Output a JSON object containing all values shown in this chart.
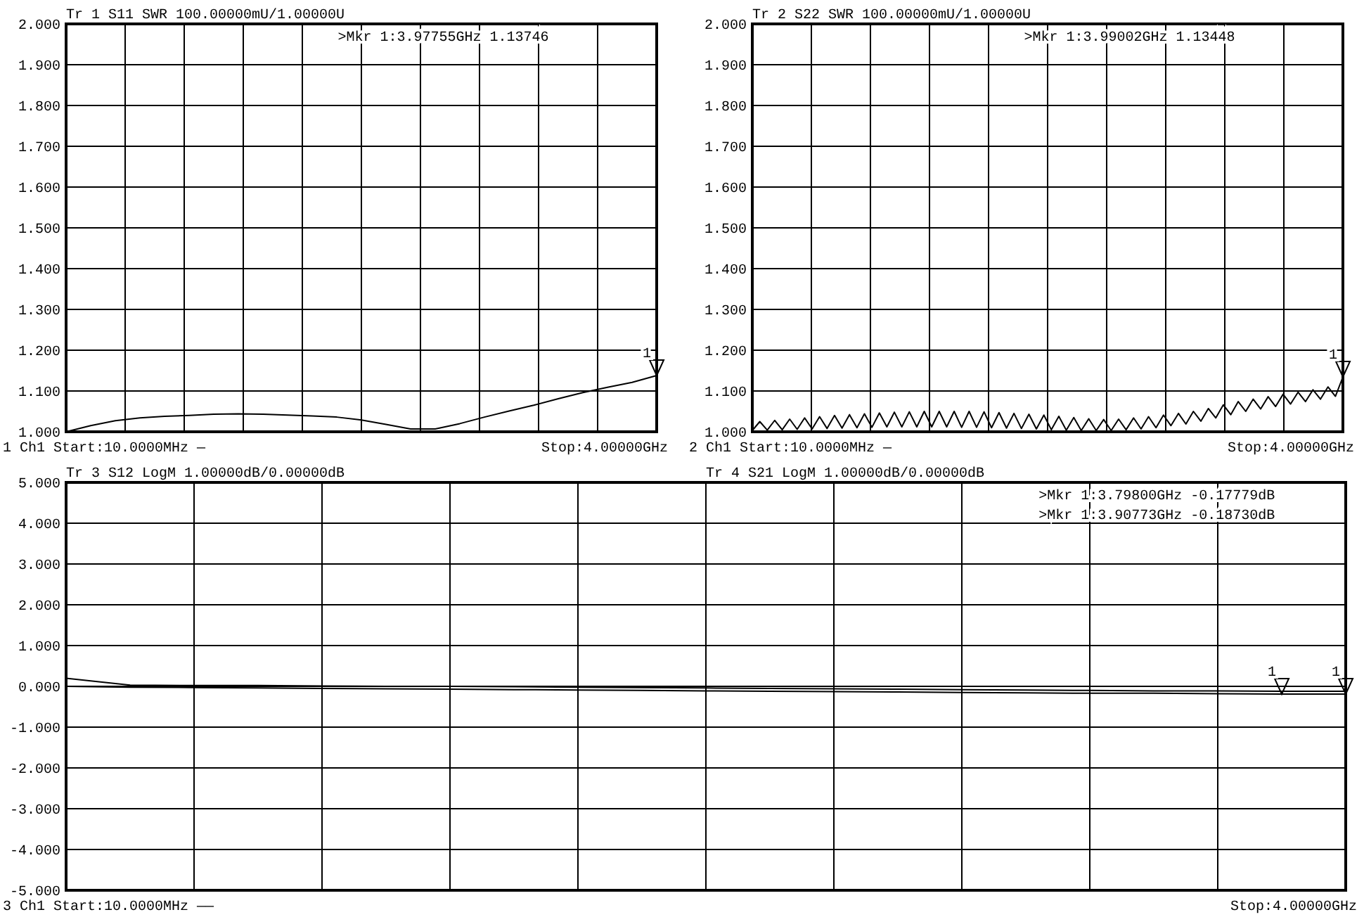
{
  "chart_data": [
    {
      "type": "line",
      "title": "Tr 1  S11 SWR 100.00000mU/1.00000U",
      "categories": [
        null,
        null,
        null,
        null,
        null,
        null,
        null,
        null,
        null,
        null,
        null,
        null,
        null,
        null,
        null,
        null,
        null,
        null,
        null,
        null,
        null,
        null,
        null,
        null,
        null
      ],
      "ylim": [
        1.0,
        2.0
      ],
      "yticks": [
        {
          "value": 1.0,
          "label": "1.000"
        },
        {
          "value": 1.1,
          "label": "1.100"
        },
        {
          "value": 1.2,
          "label": "1.200"
        },
        {
          "value": 1.3,
          "label": "1.300"
        },
        {
          "value": 1.4,
          "label": "1.400"
        },
        {
          "value": 1.5,
          "label": "1.500"
        },
        {
          "value": 1.6,
          "label": "1.600"
        },
        {
          "value": 1.7,
          "label": "1.700"
        },
        {
          "value": 1.8,
          "label": "1.800"
        },
        {
          "value": 1.9,
          "label": "1.900"
        },
        {
          "value": 2.0,
          "label": "2.000"
        }
      ],
      "grid": true,
      "tick_labels": "y",
      "series": [
        {
          "color": "#000000",
          "values": [
            1.0,
            1.015,
            1.027,
            1.034,
            1.038,
            1.04,
            1.043,
            1.044,
            1.043,
            1.041,
            1.039,
            1.036,
            1.029,
            1.018,
            1.007,
            1.007,
            1.02,
            1.036,
            1.051,
            1.065,
            1.081,
            1.096,
            1.109,
            1.121,
            1.138
          ]
        }
      ],
      "annotations": [
        ">Mkr 1:3.97755GHz 1.13746",
        "1",
        "1  Ch1  Start:10.0000MHz —",
        "Stop:4.00000GHz"
      ]
    },
    {
      "type": "line",
      "title": "Tr 2  S22 SWR 100.00000mU/1.00000U",
      "categories": [
        null,
        null,
        null,
        null,
        null,
        null,
        null,
        null,
        null,
        null,
        null,
        null,
        null,
        null,
        null,
        null,
        null,
        null,
        null,
        null,
        null,
        null,
        null,
        null,
        null,
        null,
        null,
        null,
        null,
        null,
        null,
        null,
        null,
        null,
        null,
        null,
        null,
        null,
        null,
        null,
        null,
        null,
        null,
        null,
        null,
        null,
        null,
        null,
        null,
        null,
        null,
        null,
        null,
        null,
        null,
        null,
        null,
        null,
        null,
        null,
        null,
        null,
        null,
        null,
        null,
        null,
        null,
        null,
        null,
        null,
        null,
        null,
        null,
        null,
        null,
        null,
        null,
        null,
        null,
        null
      ],
      "ylim": [
        1.0,
        2.0
      ],
      "yticks": [
        {
          "value": 1.0,
          "label": "1.000"
        },
        {
          "value": 1.1,
          "label": "1.100"
        },
        {
          "value": 1.2,
          "label": "1.200"
        },
        {
          "value": 1.3,
          "label": "1.300"
        },
        {
          "value": 1.4,
          "label": "1.400"
        },
        {
          "value": 1.5,
          "label": "1.500"
        },
        {
          "value": 1.6,
          "label": "1.600"
        },
        {
          "value": 1.7,
          "label": "1.700"
        },
        {
          "value": 1.8,
          "label": "1.800"
        },
        {
          "value": 1.9,
          "label": "1.900"
        },
        {
          "value": 2.0,
          "label": "2.000"
        }
      ],
      "grid": true,
      "tick_labels": "y",
      "series": [
        {
          "color": "#000000",
          "values": [
            1.003,
            1.025,
            1.004,
            1.028,
            1.005,
            1.031,
            1.006,
            1.034,
            1.007,
            1.037,
            1.008,
            1.04,
            1.009,
            1.042,
            1.01,
            1.044,
            1.011,
            1.046,
            1.012,
            1.048,
            1.012,
            1.049,
            1.012,
            1.05,
            1.012,
            1.05,
            1.012,
            1.05,
            1.011,
            1.05,
            1.011,
            1.049,
            1.01,
            1.047,
            1.009,
            1.045,
            1.008,
            1.043,
            1.007,
            1.041,
            1.005,
            1.038,
            1.004,
            1.035,
            1.003,
            1.032,
            1.003,
            1.03,
            1.003,
            1.031,
            1.005,
            1.034,
            1.007,
            1.037,
            1.01,
            1.041,
            1.015,
            1.045,
            1.019,
            1.05,
            1.026,
            1.057,
            1.034,
            1.066,
            1.042,
            1.074,
            1.05,
            1.08,
            1.056,
            1.086,
            1.062,
            1.092,
            1.068,
            1.097,
            1.074,
            1.103,
            1.08,
            1.11,
            1.087,
            1.13448
          ]
        }
      ],
      "annotations": [
        ">Mkr 1:3.99002GHz 1.13448",
        "1",
        "2  Ch1  Start:10.0000MHz —",
        "Stop:4.00000GHz"
      ]
    },
    {
      "type": "line",
      "title": "Tr 3  S12 LogM 1.00000dB/0.00000dB",
      "subtitle": "Tr 4  S21 LogM 1.00000dB/0.00000dB",
      "categories": [
        null,
        null,
        null,
        null,
        null,
        null,
        null,
        null,
        null,
        null,
        null,
        null,
        null,
        null,
        null,
        null,
        null,
        null,
        null,
        null,
        null
      ],
      "ylim": [
        -5.0,
        5.0
      ],
      "yticks": [
        {
          "value": -5,
          "label": "-5.000"
        },
        {
          "value": -4,
          "label": "-4.000"
        },
        {
          "value": -3,
          "label": "-3.000"
        },
        {
          "value": -2,
          "label": "-2.000"
        },
        {
          "value": -1,
          "label": "-1.000"
        },
        {
          "value": 0,
          "label": "0.000"
        },
        {
          "value": 1,
          "label": "1.000"
        },
        {
          "value": 2,
          "label": "2.000"
        },
        {
          "value": 3,
          "label": "3.000"
        },
        {
          "value": 4,
          "label": "4.000"
        },
        {
          "value": 5,
          "label": "5.000"
        }
      ],
      "grid": true,
      "tick_labels": "y",
      "series": [
        {
          "color": "#000000",
          "values": [
            0.2,
            0.03,
            0.02,
            0.02,
            0.01,
            0.0,
            0.0,
            -0.01,
            -0.02,
            -0.03,
            -0.04,
            -0.05,
            -0.06,
            -0.07,
            -0.08,
            -0.09,
            -0.1,
            -0.11,
            -0.11,
            -0.12,
            -0.12
          ]
        },
        {
          "color": "#000000",
          "values": [
            0.0,
            -0.02,
            -0.03,
            -0.04,
            -0.05,
            -0.06,
            -0.07,
            -0.08,
            -0.09,
            -0.1,
            -0.11,
            -0.12,
            -0.13,
            -0.14,
            -0.15,
            -0.16,
            -0.17,
            -0.17,
            -0.18,
            -0.19,
            -0.19
          ]
        }
      ],
      "annotations": [
        ">Mkr 1:3.79800GHz -0.17779dB",
        ">Mkr 1:3.90773GHz -0.18730dB",
        "1",
        "1",
        "3  Ch1  Start:10.0000MHz ——",
        "Stop:4.00000GHz"
      ]
    }
  ]
}
